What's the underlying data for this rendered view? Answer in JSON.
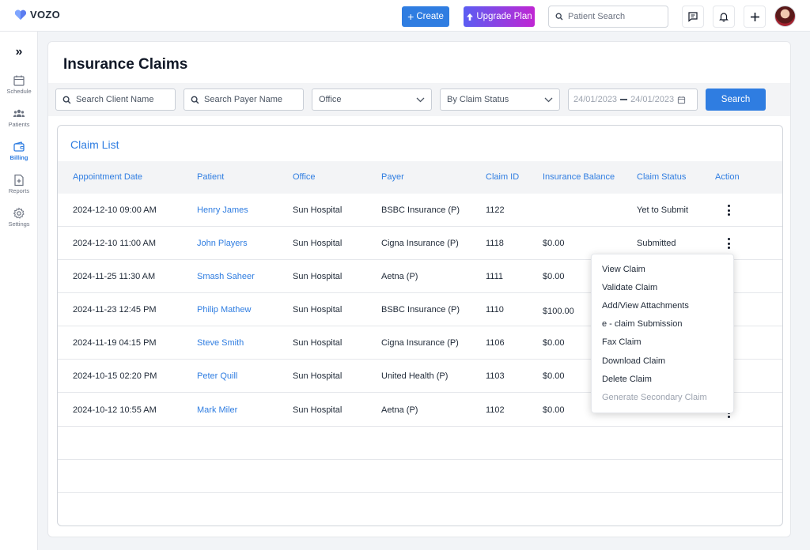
{
  "header": {
    "logo": "VOZO",
    "create_label": "Create",
    "upgrade_label": "Upgrade Plan",
    "search_placeholder": "Patient Search",
    "brand_color": "#2f7de1"
  },
  "sidebar": {
    "items": [
      {
        "label": "Schedule",
        "icon": "calendar-icon"
      },
      {
        "label": "Patients",
        "icon": "users-icon"
      },
      {
        "label": "Billing",
        "icon": "wallet-icon",
        "active": true
      },
      {
        "label": "Reports",
        "icon": "report-icon"
      },
      {
        "label": "Settings",
        "icon": "gear-icon"
      }
    ]
  },
  "page": {
    "title": "Insurance Claims"
  },
  "filters": {
    "client_placeholder": "Search Client Name",
    "payer_placeholder": "Search Payer Name",
    "office_value": "Office",
    "status_value": "By Claim Status",
    "date_from": "24/01/2023",
    "date_to": "24/01/2023",
    "search_label": "Search"
  },
  "claim_list": {
    "title": "Claim List",
    "columns": [
      "Appointment Date",
      "Patient",
      "Office",
      "Payer",
      "Claim ID",
      "Insurance Balance",
      "Claim Status",
      "Action"
    ],
    "rows": [
      {
        "date": "2024-12-10 09:00 AM",
        "patient": "Henry James",
        "office": "Sun Hospital",
        "payer": "BSBC Insurance (P)",
        "claim_id": "1122",
        "balance": "",
        "status": "Yet to Submit"
      },
      {
        "date": "2024-12-10 11:00 AM",
        "patient": "John Players",
        "office": "Sun Hospital",
        "payer": "Cigna Insurance (P)",
        "claim_id": "1118",
        "balance": "$0.00",
        "status": "Submitted"
      },
      {
        "date": "2024-11-25 11:30 AM",
        "patient": "Smash Saheer",
        "office": "Sun Hospital",
        "payer": "Aetna (P)",
        "claim_id": "1111",
        "balance": "$0.00",
        "status": ""
      },
      {
        "date": "2024-11-23 12:45 PM",
        "patient": "Philip Mathew",
        "office": "Sun Hospital",
        "payer": "BSBC Insurance (P)",
        "claim_id": "1110",
        "balance": "$100.00",
        "status": ""
      },
      {
        "date": "2024-11-19 04:15 PM",
        "patient": "Steve Smith",
        "office": "Sun Hospital",
        "payer": "Cigna Insurance (P)",
        "claim_id": "1106",
        "balance": "$0.00",
        "status": ""
      },
      {
        "date": "2024-10-15 02:20 PM",
        "patient": "Peter Quill",
        "office": "Sun Hospital",
        "payer": "United Health (P)",
        "claim_id": "1103",
        "balance": "$0.00",
        "status": ""
      },
      {
        "date": "2024-10-12 10:55 AM",
        "patient": "Mark Miler",
        "office": "Sun Hospital",
        "payer": "Aetna (P)",
        "claim_id": "1102",
        "balance": "$0.00",
        "status": ""
      }
    ]
  },
  "action_menu": {
    "items": [
      {
        "label": "View Claim",
        "disabled": false
      },
      {
        "label": "Validate Claim",
        "disabled": false
      },
      {
        "label": "Add/View Attachments",
        "disabled": false
      },
      {
        "label": "e - claim Submission",
        "disabled": false
      },
      {
        "label": "Fax Claim",
        "disabled": false
      },
      {
        "label": "Download Claim",
        "disabled": false
      },
      {
        "label": "Delete Claim",
        "disabled": false
      },
      {
        "label": "Generate Secondary Claim",
        "disabled": true
      }
    ]
  }
}
